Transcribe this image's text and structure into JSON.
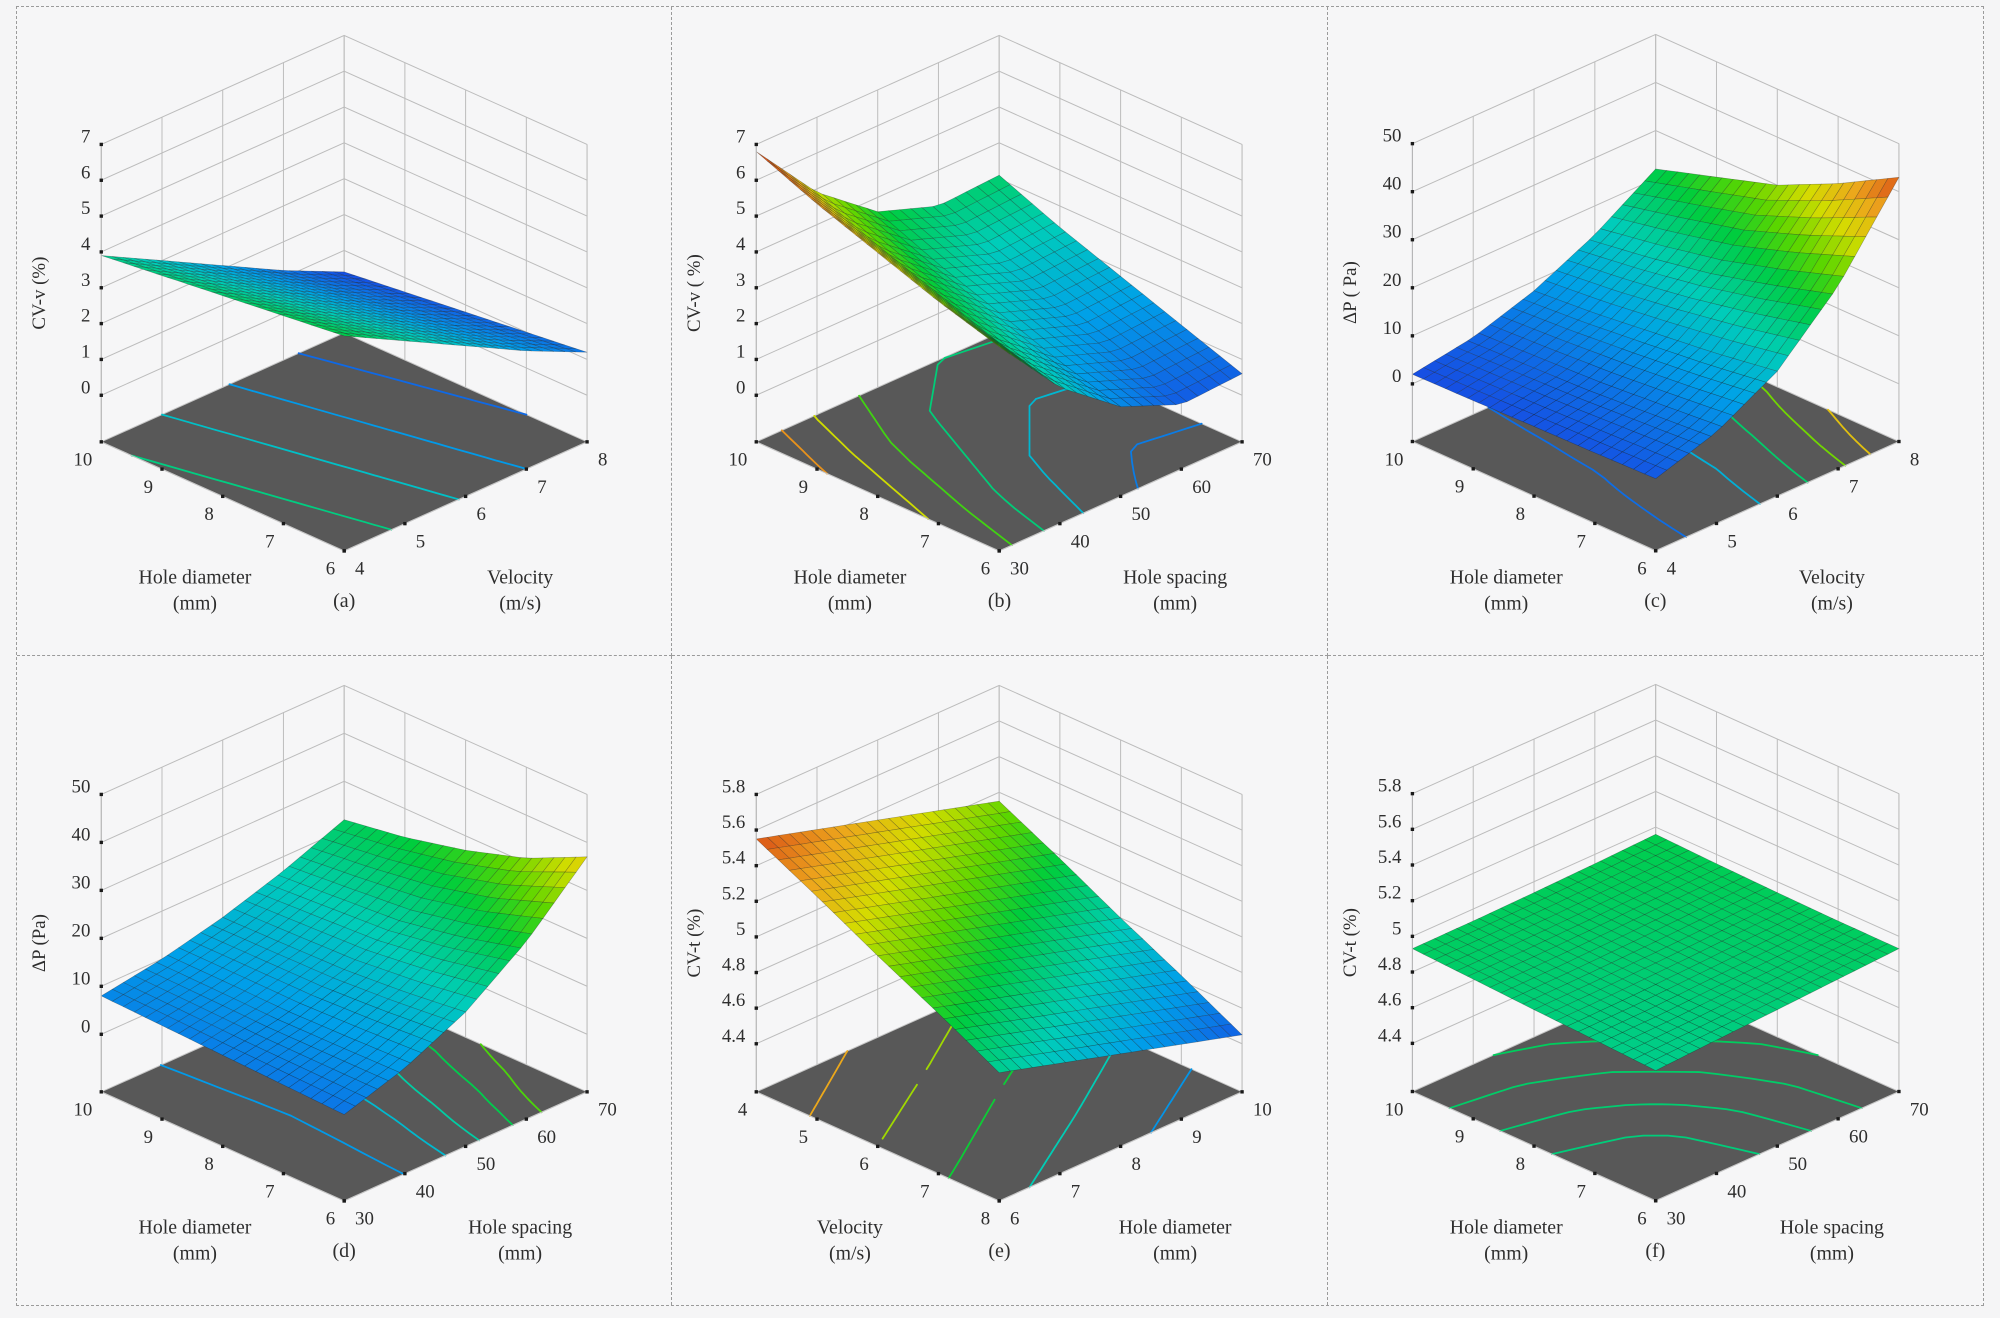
{
  "figure": {
    "background": "#f6f6f7",
    "floor_color": "#585858",
    "wall_grid_color": "#bcbcbc",
    "tick_dot_color": "#1a1a1a",
    "colormap": "jet-rainbow",
    "panel_count": 6
  },
  "chart_data": [
    {
      "id": "a",
      "type": "surface3d",
      "caption": "(a)",
      "z_axis": {
        "label": "CV-v (%)",
        "ticks": [
          "7",
          "6",
          "5",
          "4",
          "3",
          "2",
          "1",
          "0"
        ],
        "lim": [
          -1.3,
          7
        ]
      },
      "left_axis": {
        "label": "Hole diameter",
        "unit": "(mm)",
        "ticks": [
          "10",
          "9",
          "8",
          "7",
          "6"
        ]
      },
      "right_axis": {
        "label": "Velocity",
        "unit": "(m/s)",
        "ticks": [
          "4",
          "5",
          "6",
          "7",
          "8"
        ]
      },
      "color_domain": [
        0,
        9.6
      ],
      "contour_levels": [
        1,
        2,
        3,
        4
      ],
      "grid": [
        [
          3.9,
          3.0,
          2.1,
          1.2,
          0.4
        ],
        [
          4.1,
          3.2,
          2.3,
          1.4,
          0.6
        ],
        [
          4.3,
          3.4,
          2.5,
          1.6,
          0.8
        ],
        [
          4.5,
          3.6,
          2.7,
          1.8,
          1.0
        ],
        [
          4.7,
          3.8,
          2.9,
          2.0,
          1.2
        ]
      ]
    },
    {
      "id": "b",
      "type": "surface3d",
      "caption": "(b)",
      "z_axis": {
        "label": "CV-v ( %)",
        "ticks": [
          "7",
          "6",
          "5",
          "4",
          "3",
          "2",
          "1",
          "0"
        ],
        "lim": [
          -1.3,
          7
        ]
      },
      "left_axis": {
        "label": "Hole diameter",
        "unit": "(mm)",
        "ticks": [
          "10",
          "9",
          "8",
          "7",
          "6"
        ]
      },
      "right_axis": {
        "label": "Hole spacing",
        "unit": "(mm)",
        "ticks": [
          "30",
          "40",
          "50",
          "60",
          "70"
        ]
      },
      "color_domain": [
        0,
        7
      ],
      "contour_levels": [
        1,
        2,
        3,
        4,
        5,
        6
      ],
      "grid": [
        [
          6.8,
          4.9,
          3.6,
          3.0,
          3.1
        ],
        [
          6.1,
          4.2,
          2.9,
          2.3,
          2.4
        ],
        [
          5.5,
          3.6,
          2.3,
          1.7,
          1.8
        ],
        [
          4.9,
          3.0,
          1.7,
          1.1,
          1.2
        ],
        [
          4.4,
          2.5,
          1.2,
          0.5,
          0.6
        ]
      ]
    },
    {
      "id": "c",
      "type": "surface3d",
      "caption": "(c)",
      "z_axis": {
        "label": "ΔP ( Pa)",
        "ticks": [
          "50",
          "40",
          "30",
          "20",
          "10",
          "0"
        ],
        "lim": [
          -12,
          50
        ]
      },
      "left_axis": {
        "label": "Hole diameter",
        "unit": "(mm)",
        "ticks": [
          "10",
          "9",
          "8",
          "7",
          "6"
        ]
      },
      "right_axis": {
        "label": "Velocity",
        "unit": "(m/s)",
        "ticks": [
          "4",
          "5",
          "6",
          "7",
          "8"
        ]
      },
      "color_domain": [
        0,
        45
      ],
      "contour_levels": [
        5,
        12,
        20,
        28,
        35
      ],
      "grid": [
        [
          2.0,
          4.0,
          8.0,
          14.0,
          22.0
        ],
        [
          2.2,
          4.5,
          9.0,
          16.0,
          26.0
        ],
        [
          2.5,
          5.0,
          10.5,
          18.5,
          30.0
        ],
        [
          2.7,
          6.0,
          12.0,
          22.0,
          36.0
        ],
        [
          3.0,
          7.0,
          14.0,
          26.0,
          43.0
        ]
      ]
    },
    {
      "id": "d",
      "type": "surface3d",
      "caption": "(d)",
      "z_axis": {
        "label": "ΔP (Pa)",
        "ticks": [
          "50",
          "40",
          "30",
          "20",
          "10",
          "0"
        ],
        "lim": [
          -12,
          50
        ]
      },
      "left_axis": {
        "label": "Hole diameter",
        "unit": "(mm)",
        "ticks": [
          "10",
          "9",
          "8",
          "7",
          "6"
        ]
      },
      "right_axis": {
        "label": "Hole spacing",
        "unit": "(mm)",
        "ticks": [
          "30",
          "40",
          "50",
          "60",
          "70"
        ]
      },
      "color_domain": [
        0,
        48
      ],
      "contour_levels": [
        10,
        14,
        18,
        23,
        28
      ],
      "grid": [
        [
          8.0,
          10.0,
          13.0,
          17.0,
          22.0
        ],
        [
          7.5,
          9.8,
          13.2,
          18.0,
          24.0
        ],
        [
          7.0,
          9.5,
          13.5,
          19.0,
          27.0
        ],
        [
          6.5,
          9.7,
          14.5,
          21.5,
          31.0
        ],
        [
          6.0,
          10.0,
          16.0,
          25.0,
          37.0
        ]
      ]
    },
    {
      "id": "e",
      "type": "surface3d",
      "caption": "(e)",
      "z_axis": {
        "label": "CV-t (%)",
        "ticks": [
          "5.8",
          "5.6",
          "5.4",
          "5.2",
          "5",
          "4.8",
          "4.6",
          "4.4"
        ],
        "lim": [
          4.13,
          5.8
        ]
      },
      "left_axis": {
        "label": "Velocity",
        "unit": "(m/s)",
        "ticks": [
          "4",
          "5",
          "6",
          "7",
          "8"
        ]
      },
      "right_axis": {
        "label": "Hole diameter",
        "unit": "(mm)",
        "ticks": [
          "6",
          "7",
          "8",
          "9",
          "10"
        ]
      },
      "color_domain": [
        4.35,
        5.62
      ],
      "contour_levels": [
        4.6,
        4.8,
        5.0,
        5.2,
        5.4
      ],
      "grid": [
        [
          5.55,
          5.45,
          5.35,
          5.25,
          5.15
        ],
        [
          5.38,
          5.28,
          5.18,
          5.08,
          4.98
        ],
        [
          5.2,
          5.1,
          5.0,
          4.9,
          4.8
        ],
        [
          5.03,
          4.93,
          4.83,
          4.73,
          4.63
        ],
        [
          4.85,
          4.75,
          4.65,
          4.55,
          4.45
        ]
      ]
    },
    {
      "id": "f",
      "type": "surface3d",
      "caption": "(f)",
      "z_axis": {
        "label": "CV-t (%)",
        "ticks": [
          "5.8",
          "5.6",
          "5.4",
          "5.2",
          "5",
          "4.8",
          "4.6",
          "4.4"
        ],
        "lim": [
          4.13,
          5.8
        ]
      },
      "left_axis": {
        "label": "Hole diameter",
        "unit": "(mm)",
        "ticks": [
          "10",
          "9",
          "8",
          "7",
          "6"
        ]
      },
      "right_axis": {
        "label": "Hole spacing",
        "unit": "(mm)",
        "ticks": [
          "30",
          "40",
          "50",
          "60",
          "70"
        ]
      },
      "color_domain": [
        4.35,
        5.62
      ],
      "contour_levels": [
        4.89,
        4.905,
        4.92,
        4.935
      ],
      "grid": [
        [
          4.931,
          4.933,
          4.939,
          4.948,
          4.96
        ],
        [
          4.913,
          4.916,
          4.924,
          4.937,
          4.948
        ],
        [
          4.895,
          4.9,
          4.91,
          4.924,
          4.939
        ],
        [
          4.878,
          4.884,
          4.9,
          4.916,
          4.933
        ],
        [
          4.86,
          4.878,
          4.895,
          4.913,
          4.931
        ]
      ]
    }
  ]
}
